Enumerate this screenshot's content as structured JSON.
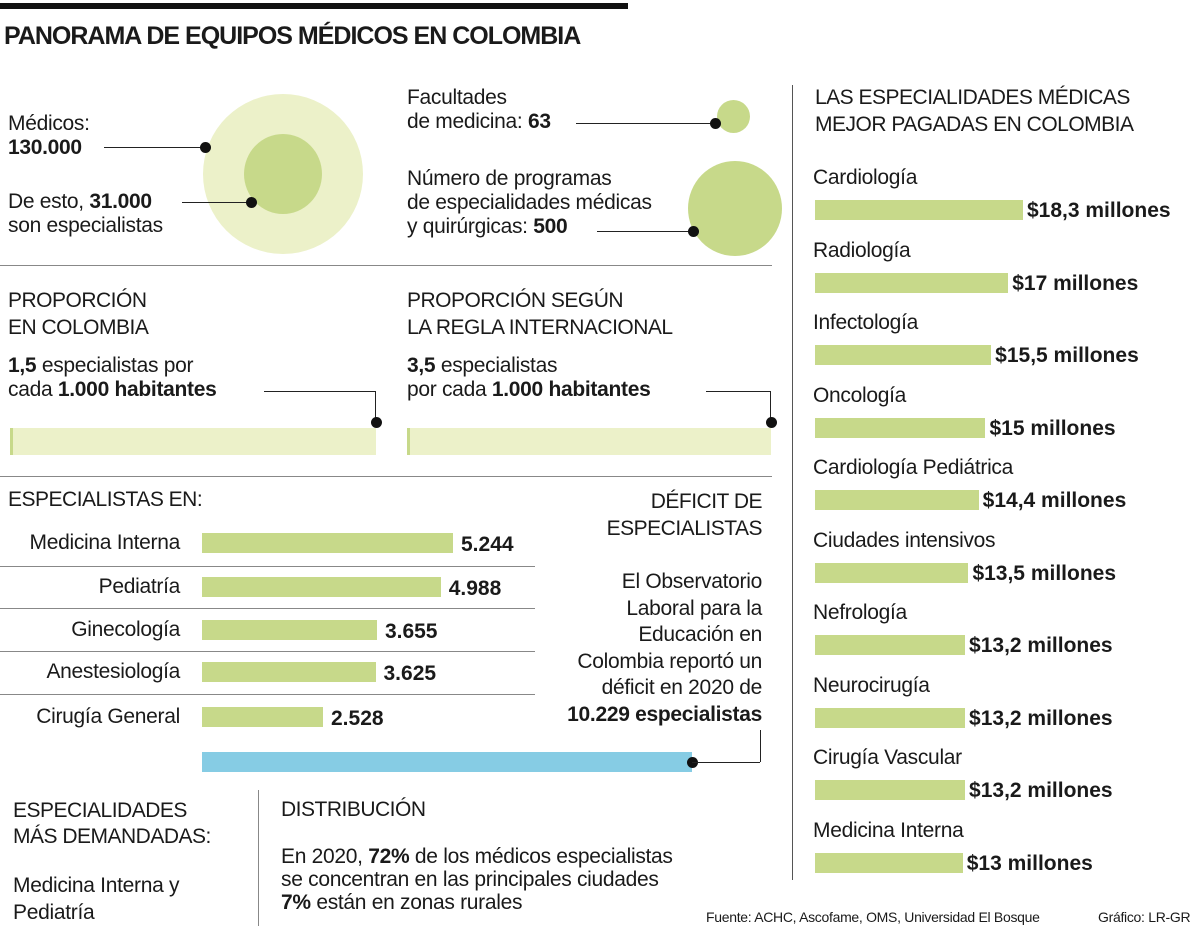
{
  "title": "PANORAMA DE EQUIPOS MÉDICOS EN COLOMBIA",
  "colors": {
    "light_green": "#ecf1c9",
    "green": "#c7d98a",
    "blue": "#86cce4"
  },
  "medicos": {
    "label": "Médicos:",
    "value": "130.000",
    "spec_prefix": "De esto,",
    "spec_value": "31.000",
    "spec_suffix": "son especialistas"
  },
  "facultades": {
    "line1": "Facultades",
    "line2": "de medicina:",
    "value": "63"
  },
  "programas": {
    "line1": "Número de programas",
    "line2": "de especialidades médicas",
    "line3": "y quirúrgicas:",
    "value": "500"
  },
  "proporcion_colombia": {
    "h1": "PROPORCIÓN",
    "h2": "EN COLOMBIA",
    "value": "1,5",
    "t1": "especialistas por",
    "t2": "cada",
    "t3": "1.000 habitantes",
    "ratio": 1.5
  },
  "proporcion_internacional": {
    "h1": "PROPORCIÓN SEGÚN",
    "h2": "LA REGLA INTERNACIONAL",
    "value": "3,5",
    "t1": "especialistas",
    "t2": "por cada",
    "t3": "1.000 habitantes",
    "ratio": 3.5
  },
  "deficit": {
    "h1": "DÉFICIT DE",
    "h2": "ESPECIALISTAS",
    "p1": "El Observatorio",
    "p2": "Laboral para la",
    "p3": "Educación en",
    "p4": "Colombia reportó un",
    "p5": "déficit en 2020 de",
    "value": "10.229 especialistas",
    "number": 10229
  },
  "demandadas": {
    "h1": "ESPECIALIDADES",
    "h2": "MÁS DEMANDADAS:",
    "t1": "Medicina Interna y",
    "t2": "Pediatría"
  },
  "distribucion": {
    "h": "DISTRIBUCIÓN",
    "t1a": "En 2020,",
    "t1b": "72%",
    "t1c": "de los médicos especialistas",
    "t2": "se concentran en las principales ciudades",
    "t3a": "7%",
    "t3b": "están en zonas rurales"
  },
  "footer": {
    "source": "Fuente: ACHC, Ascofame, OMS, Universidad El Bosque",
    "credit": "Gráfico: LR-GR"
  },
  "chart_data": [
    {
      "type": "bar",
      "title": "ESPECIALISTAS EN:",
      "categories": [
        "Medicina Interna",
        "Pediatría",
        "Ginecología",
        "Anestesiología",
        "Cirugía General"
      ],
      "values": [
        5244,
        4988,
        3655,
        3625,
        2528
      ],
      "labels": [
        "5.244",
        "4.988",
        "3.655",
        "3.625",
        "2.528"
      ],
      "orientation": "horizontal"
    },
    {
      "type": "bar",
      "title": "LAS ESPECIALIDADES MÉDICAS MEJOR PAGADAS EN COLOMBIA",
      "title_lines": [
        "LAS ESPECIALIDADES MÉDICAS",
        "MEJOR PAGADAS EN COLOMBIA"
      ],
      "categories": [
        "Cardiología",
        "Radiología",
        "Infectología",
        "Oncología",
        "Cardiología Pediátrica",
        "Ciudades intensivos",
        "Nefrología",
        "Neurocirugía",
        "Cirugía Vascular",
        "Medicina Interna"
      ],
      "values": [
        18.3,
        17,
        15.5,
        15,
        14.4,
        13.5,
        13.2,
        13.2,
        13.2,
        13
      ],
      "labels": [
        "$18,3 millones",
        "$17 millones",
        "$15,5 millones",
        "$15 millones",
        "$14,4 millones",
        "$13,5 millones",
        "$13,2 millones",
        "$13,2 millones",
        "$13,2 millones",
        "$13 millones"
      ],
      "unit": "millones de pesos",
      "orientation": "horizontal"
    }
  ]
}
